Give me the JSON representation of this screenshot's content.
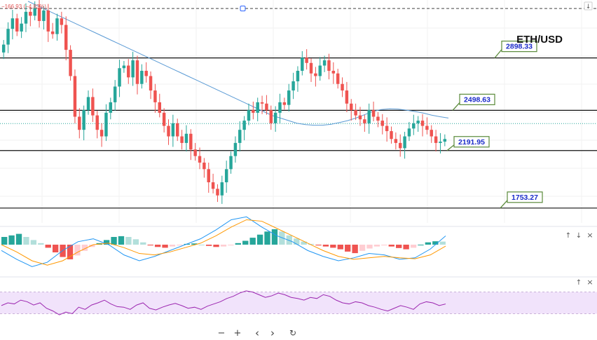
{
  "header": {
    "change_label": "−166.93 (−4.83%)"
  },
  "chart_data": {
    "type": "candlestick",
    "title": "ETH/USD",
    "symbol": "ETH/USD",
    "price_range": [
      1640,
      3340
    ],
    "levels": [
      {
        "name": "resistance-2",
        "value": 2898.33,
        "label": "2898.33"
      },
      {
        "name": "resistance-1",
        "value": 2498.63,
        "label": "2498.63"
      },
      {
        "name": "support-1",
        "value": 2191.95,
        "label": "2191.95"
      },
      {
        "name": "support-2",
        "value": 1753.27,
        "label": "1753.27"
      }
    ],
    "current_price_line": 2398,
    "upper_dashed_line": 3275,
    "candle_closes": [
      3000,
      3120,
      3200,
      3100,
      3160,
      3250,
      3220,
      3280,
      3180,
      3260,
      3100,
      3080,
      3200,
      3150,
      2960,
      2760,
      2450,
      2350,
      2500,
      2600,
      2460,
      2350,
      2300,
      2480,
      2560,
      2680,
      2820,
      2840,
      2750,
      2880,
      2700,
      2800,
      2760,
      2650,
      2560,
      2480,
      2380,
      2300,
      2400,
      2300,
      2250,
      2320,
      2200,
      2150,
      2100,
      2050,
      1950,
      1900,
      1850,
      1950,
      2050,
      2150,
      2250,
      2350,
      2420,
      2500,
      2480,
      2560,
      2550,
      2500,
      2400,
      2480,
      2560,
      2540,
      2650,
      2720,
      2800,
      2900,
      2860,
      2780,
      2760,
      2840,
      2880,
      2800,
      2780,
      2700,
      2650,
      2550,
      2500,
      2460,
      2430,
      2400,
      2500,
      2450,
      2420,
      2380,
      2340,
      2280,
      2250,
      2210,
      2300,
      2360,
      2400,
      2420,
      2380,
      2350,
      2300,
      2250,
      2260,
      2280
    ],
    "ma_values": [
      3330,
      3300,
      3270,
      3240,
      3210,
      3180,
      3150,
      3120,
      3090,
      3060,
      3030,
      3000,
      2970,
      2940,
      2910,
      2880,
      2850,
      2820,
      2790,
      2760,
      2730,
      2700,
      2670,
      2640,
      2610,
      2580,
      2550,
      2520,
      2490,
      2460,
      2440,
      2420,
      2400,
      2390,
      2385,
      2385,
      2392,
      2405,
      2420,
      2440,
      2465,
      2490,
      2505,
      2510,
      2508,
      2500,
      2490,
      2478,
      2462,
      2450,
      2440
    ],
    "macd": {
      "histogram": [
        0.5,
        0.6,
        0.7,
        0.5,
        0.3,
        0.1,
        -0.2,
        -0.5,
        -0.8,
        -0.95,
        -0.7,
        -0.4,
        -0.15,
        0.1,
        0.3,
        0.5,
        0.55,
        0.5,
        0.35,
        0.15,
        -0.05,
        -0.15,
        -0.2,
        -0.12,
        -0.05,
        0.05,
        0.08,
        0,
        -0.08,
        -0.15,
        -0.12,
        -0.05,
        0.1,
        0.25,
        0.45,
        0.65,
        0.85,
        1,
        0.85,
        0.6,
        0.4,
        0.2,
        0.05,
        -0.05,
        -0.12,
        -0.2,
        -0.3,
        -0.45,
        -0.55,
        -0.4,
        -0.25,
        -0.12,
        -0.05,
        -0.12,
        -0.22,
        -0.3,
        -0.2,
        0,
        0.15,
        0.22,
        0.2
      ],
      "macd_line": [
        -0.2,
        -0.5,
        -0.75,
        -0.6,
        -0.2,
        0.1,
        0.2,
        0,
        -0.35,
        -0.55,
        -0.4,
        -0.2,
        0,
        0.2,
        0.5,
        0.85,
        0.95,
        0.6,
        0.3,
        0.1,
        -0.2,
        -0.4,
        -0.55,
        -0.45,
        -0.3,
        -0.35,
        -0.5,
        -0.45,
        -0.15,
        0.3
      ],
      "signal_line": [
        0,
        -0.25,
        -0.55,
        -0.7,
        -0.55,
        -0.25,
        0,
        0.05,
        -0.1,
        -0.3,
        -0.35,
        -0.25,
        -0.1,
        0.05,
        0.3,
        0.6,
        0.85,
        0.8,
        0.55,
        0.3,
        0.05,
        -0.2,
        -0.4,
        -0.5,
        -0.45,
        -0.4,
        -0.45,
        -0.48,
        -0.35,
        -0.05
      ]
    },
    "rsi": {
      "band": [
        30,
        70
      ],
      "values": [
        45,
        50,
        48,
        55,
        52,
        46,
        50,
        40,
        35,
        28,
        33,
        30,
        42,
        38,
        46,
        50,
        55,
        48,
        43,
        42,
        38,
        46,
        50,
        40,
        37,
        42,
        46,
        49,
        45,
        40,
        42,
        38,
        44,
        48,
        52,
        58,
        62,
        68,
        72,
        70,
        65,
        60,
        63,
        68,
        65,
        60,
        58,
        55,
        60,
        58,
        65,
        62,
        55,
        50,
        48,
        52,
        50,
        45,
        42,
        38,
        35,
        40,
        45,
        42,
        38,
        48,
        52,
        50,
        45,
        48
      ]
    }
  },
  "controls": {
    "zoom_out": "−",
    "zoom_in": "+",
    "prev": "‹",
    "next": "›",
    "reset": "↻",
    "pane_up": "↑",
    "pane_down": "↓",
    "pane_close": "×",
    "scroll_down": "↓"
  },
  "colors": {
    "up": "#26a69a",
    "down": "#ef5350",
    "ma": "#5b9bd5",
    "macd": "#2196f3",
    "signal": "#ff9800",
    "rsi": "#9c27b0",
    "rsi_band": "#f1e3fb",
    "level_label_border": "#5a8a3a",
    "level_label_text": "#1a2bc8"
  }
}
